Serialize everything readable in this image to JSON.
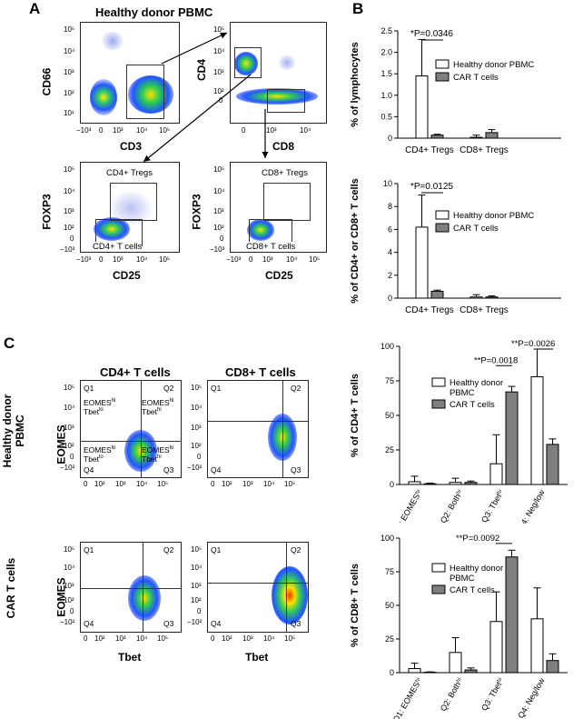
{
  "panel_A": {
    "letter": "A",
    "title": "Healthy donor PBMC",
    "plot1": {
      "x_label": "CD3",
      "y_label": "CD66",
      "x_ticks": [
        "−10³",
        "0",
        "10³",
        "10⁴",
        "10⁵"
      ],
      "y_ticks": [
        "10⁵",
        "10⁴",
        "10³",
        "10²",
        "10¹"
      ]
    },
    "plot2": {
      "x_label": "CD8",
      "y_label": "CD4",
      "x_ticks": [
        "0",
        "10³",
        "10⁴"
      ],
      "y_ticks": [
        "10⁵",
        "10⁴",
        "10³",
        "10²",
        "0"
      ]
    },
    "plot3": {
      "x_label": "CD25",
      "y_label": "FOXP3",
      "x_ticks": [
        "−10³",
        "0",
        "10³",
        "10⁴",
        "10⁵"
      ],
      "y_ticks": [
        "10⁵",
        "10⁴",
        "10³",
        "10²",
        "0",
        "−10³"
      ],
      "gate_hi": "CD4+ Tregs",
      "gate_lo": "CD4+ T cells"
    },
    "plot4": {
      "x_label": "CD25",
      "y_label": "FOXP3",
      "x_ticks": [
        "−10³",
        "0",
        "10³",
        "10⁴",
        "10⁵"
      ],
      "y_ticks": [
        "10⁵",
        "10⁴",
        "10³",
        "10²",
        "0",
        "−10³"
      ],
      "gate_hi": "CD8+ Tregs",
      "gate_lo": "CD8+ T cells"
    }
  },
  "panel_B": {
    "letter": "B"
  },
  "panel_C": {
    "letter": "C",
    "col1": "CD4+ T cells",
    "col2": "CD8+ T cells",
    "row1_label": "Healthy donor PBMC",
    "row1_axis": "EOMES",
    "row2_label": "CAR T cells",
    "row2_axis": "EOMES",
    "x_label": "Tbet",
    "x_ticks": [
      "0",
      "10²",
      "10³",
      "10⁴",
      "10⁵"
    ],
    "y_ticks": [
      "10⁵",
      "10⁴",
      "10³",
      "10²",
      "0",
      "−10²"
    ],
    "quadrants": [
      "Q1",
      "Q2",
      "Q3",
      "Q4"
    ],
    "q_text": {
      "q1a": "EOMES",
      "q1a_sup": "hi",
      "q1b": "Tbet",
      "q1b_sup": "lo",
      "q2a": "EOMES",
      "q2a_sup": "hi",
      "q2b": "Tbet",
      "q2b_sup": "hi",
      "q4a": "EOMES",
      "q4a_sup": "lo",
      "q4b": "Tbet",
      "q4b_sup": "lo",
      "q3a": "EOMES",
      "q3a_sup": "lo",
      "q3b": "Tbet",
      "q3b_sup": "hi"
    }
  },
  "chart_data": [
    {
      "type": "bar",
      "id": "B1",
      "ylabel": "% of lymphocytes",
      "ylim": [
        0,
        2.5
      ],
      "yticks": [
        "0",
        "0.5",
        "1.0",
        "1.5",
        "2.0",
        "2.5"
      ],
      "categories": [
        "CD4+ Tregs",
        "CD8+ Tregs"
      ],
      "series": [
        {
          "name": "Healthy donor PBMC",
          "values": [
            1.45,
            0.02
          ],
          "errors": [
            0.85,
            0.05
          ]
        },
        {
          "name": "CAR T cells",
          "values": [
            0.07,
            0.13
          ],
          "errors": [
            0.02,
            0.07
          ]
        }
      ],
      "annotation": "*P=0.0346"
    },
    {
      "type": "bar",
      "id": "B2",
      "ylabel": "% of CD4+ or CD8+ T cells",
      "ylim": [
        0,
        10
      ],
      "yticks": [
        "0",
        "2",
        "4",
        "6",
        "8",
        "10"
      ],
      "categories": [
        "CD4+ Tregs",
        "CD8+ Tregs"
      ],
      "series": [
        {
          "name": "Healthy donor PBMC",
          "values": [
            6.2,
            0.1
          ],
          "errors": [
            2.8,
            0.2
          ]
        },
        {
          "name": "CAR T cells",
          "values": [
            0.6,
            0.1
          ],
          "errors": [
            0.1,
            0.1
          ]
        }
      ],
      "annotation": "*P=0.0125"
    },
    {
      "type": "bar",
      "id": "C1",
      "ylabel": "% of CD4+ T cells",
      "ylim": [
        0,
        100
      ],
      "yticks": [
        "0",
        "25",
        "50",
        "75",
        "100"
      ],
      "categories": [
        "Q1: EOMESʰⁱ",
        "Q2: Bothʰⁱ",
        "Q3: Tbetʰⁱ",
        "Q4: Neg/low"
      ],
      "series": [
        {
          "name": "Healthy donor PBMC",
          "values": [
            2,
            1.5,
            15,
            78
          ],
          "errors": [
            4,
            3,
            21,
            20
          ]
        },
        {
          "name": "CAR T cells",
          "values": [
            0.5,
            1.5,
            67,
            29
          ],
          "errors": [
            0.5,
            1,
            4,
            4
          ]
        }
      ],
      "annotations": [
        "**P=0.0018",
        "**P=0.0026"
      ]
    },
    {
      "type": "bar",
      "id": "C2",
      "ylabel": "% of CD8+ T cells",
      "ylim": [
        0,
        100
      ],
      "yticks": [
        "0",
        "25",
        "50",
        "75",
        "100"
      ],
      "categories": [
        "Q1: EOMESʰⁱ",
        "Q2: Bothʰⁱ",
        "Q3: Tbetʰⁱ",
        "Q4: Neg/low"
      ],
      "series": [
        {
          "name": "Healthy donor PBMC",
          "values": [
            3,
            15,
            38,
            40
          ],
          "errors": [
            4,
            11,
            22,
            23
          ]
        },
        {
          "name": "CAR T cells",
          "values": [
            0.3,
            2,
            86,
            9
          ],
          "errors": [
            0.3,
            1.5,
            5,
            5
          ]
        }
      ],
      "annotations": [
        "**P=0.0092"
      ]
    }
  ],
  "legend": {
    "hd": "Healthy donor PBMC",
    "hd_line1": "Healthy donor",
    "hd_line2": "PBMC",
    "car": "CAR T cells"
  },
  "colors": {
    "hd_fill": "#ffffff",
    "car_fill": "#7f7f7f",
    "axis": "#000000"
  }
}
